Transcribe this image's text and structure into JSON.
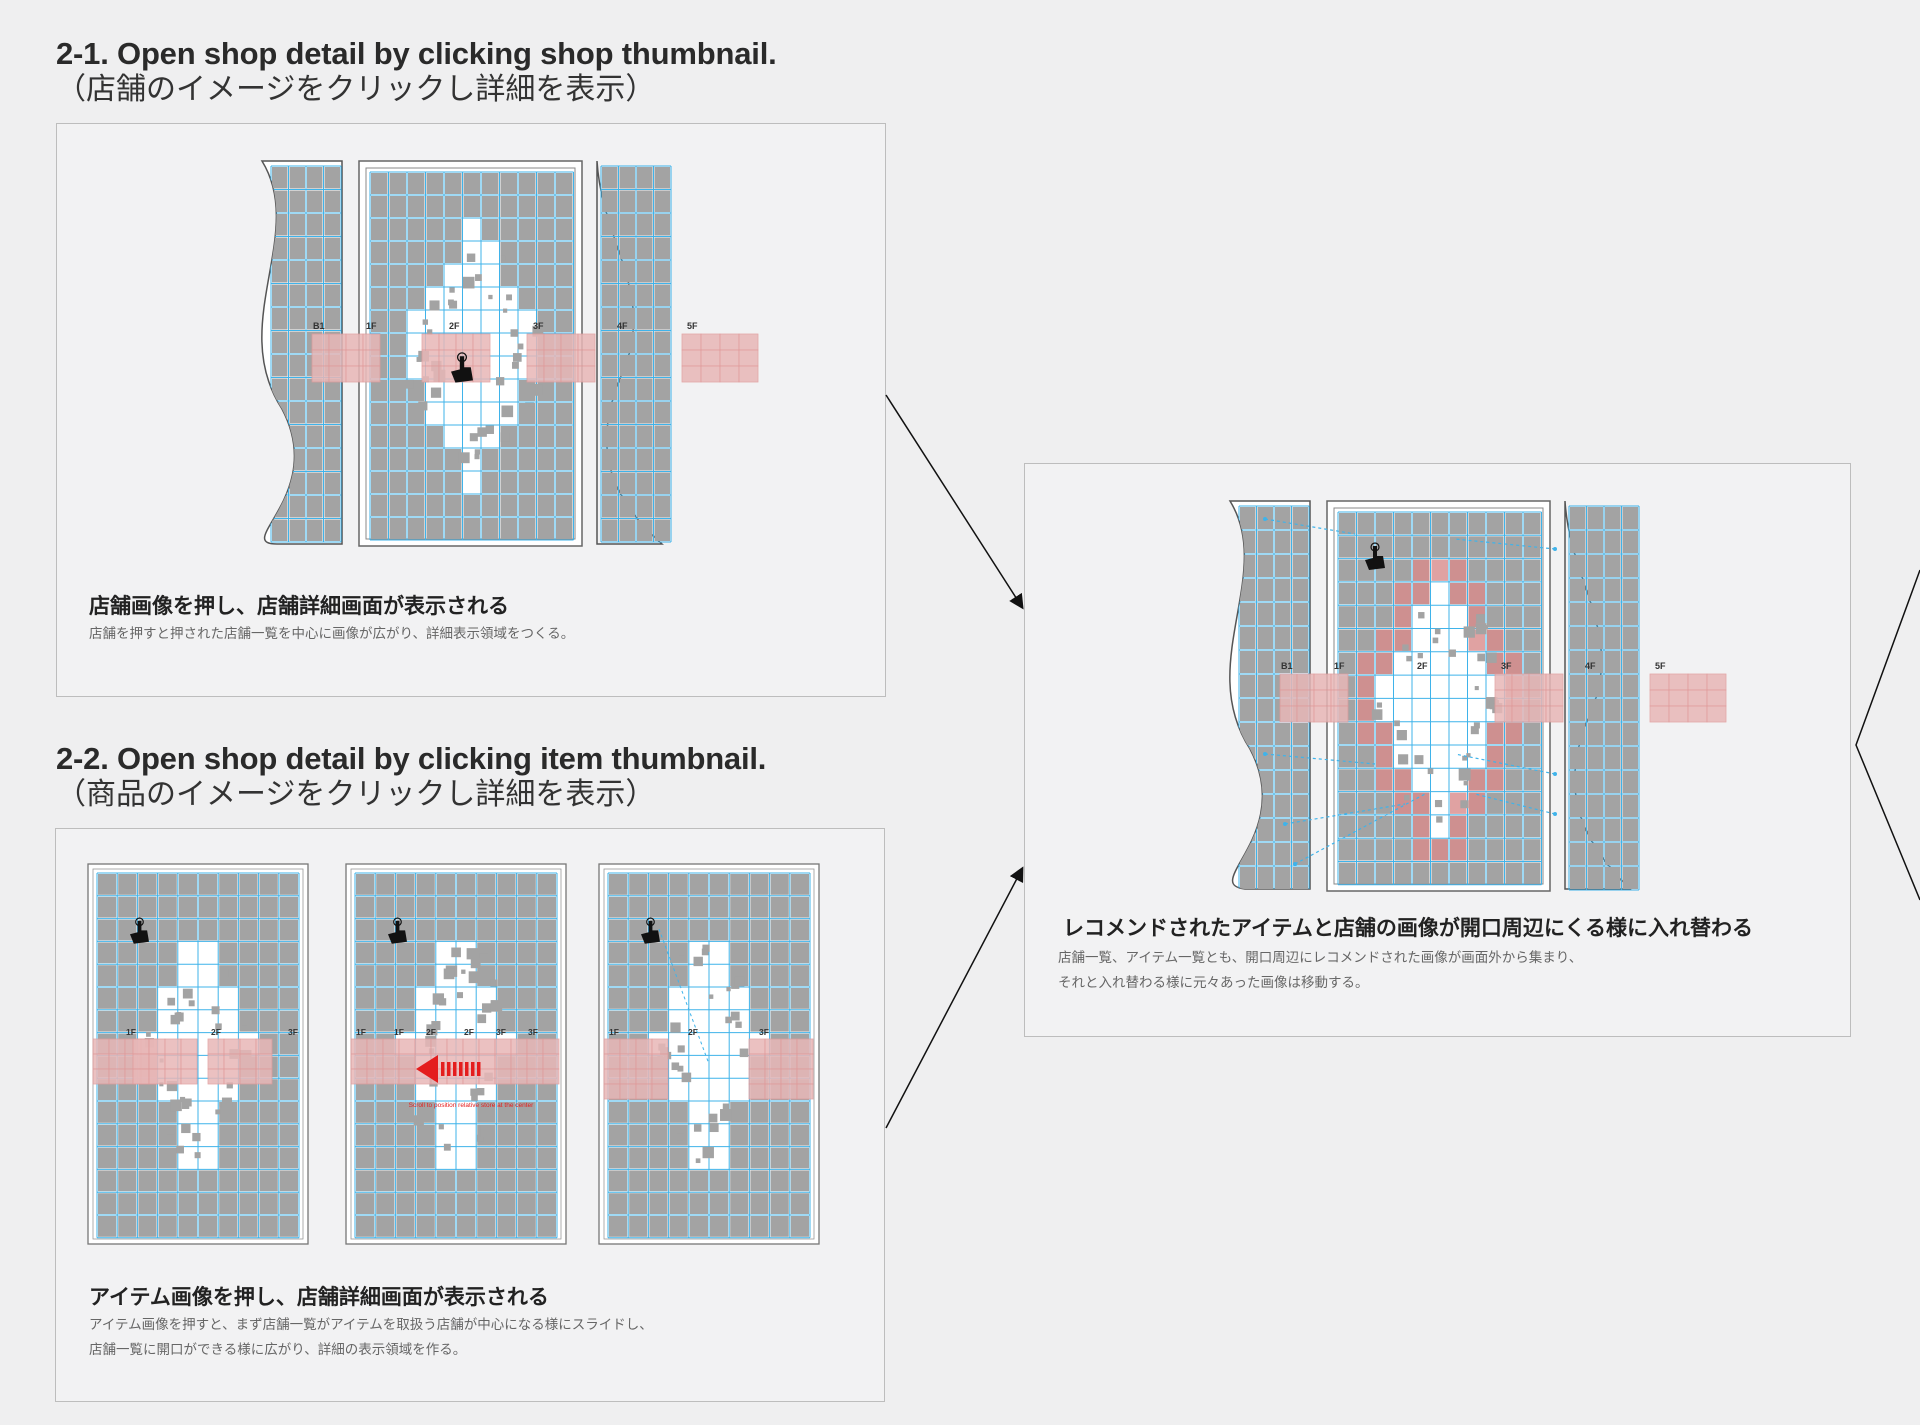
{
  "section1": {
    "title_en": "2-1. Open shop detail by clicking shop thumbnail.",
    "title_ja": "（店舗のイメージをクリックし詳細を表示）",
    "caption_heading": "店舗画像を押し、店舗詳細画面が表示される",
    "caption_text": "店舗を押すと押された店舗一覧を中心に画像が広がり、詳細表示領域をつくる。",
    "floor_labels": [
      "B1",
      "1F",
      "2F",
      "3F",
      "4F",
      "5F"
    ]
  },
  "section2": {
    "title_en": "2-2. Open shop detail by clicking item thumbnail.",
    "title_ja": "（商品のイメージをクリックし詳細を表示）",
    "caption_heading": "アイテム画像を押し、店舗詳細画面が表示される",
    "caption_line1": "アイテム画像を押すと、まず店舗一覧がアイテムを取扱う店舗が中心になる様にスライドし、",
    "caption_line2": "店舗一覧に開口ができる様に広がり、詳細の表示領域を作る。",
    "phone1_labels": [
      "1F",
      "2F",
      "3F"
    ],
    "phone2_labels": [
      "1F",
      "1F",
      "2F",
      "2F",
      "3F",
      "3F"
    ],
    "phone3_labels": [
      "1F",
      "2F",
      "3F"
    ],
    "scroll_note": "Scroll to position relative store at the center"
  },
  "result": {
    "caption_heading": "レコメンドされたアイテムと店舗の画像が開口周辺にくる様に入れ替わる",
    "caption_line1": "店舗一覧、アイテム一覧とも、開口周辺にレコメンドされた画像が画面外から集まり、",
    "caption_line2": "それと入れ替わる様に元々あった画像は移動する。",
    "floor_labels": [
      "B1",
      "1F",
      "2F",
      "3F",
      "4F",
      "5F"
    ]
  },
  "colors": {
    "tile": "#a3a3a3",
    "grid_line": "#3fb3ea",
    "highlight_fill": "#e8b7b7",
    "highlight_line": "#e09a9a",
    "accent_red": "#e41d1d",
    "hand": "#111111"
  },
  "icons": [
    "tap-hand-icon",
    "scroll-arrow-icon",
    "connector-arrow"
  ]
}
